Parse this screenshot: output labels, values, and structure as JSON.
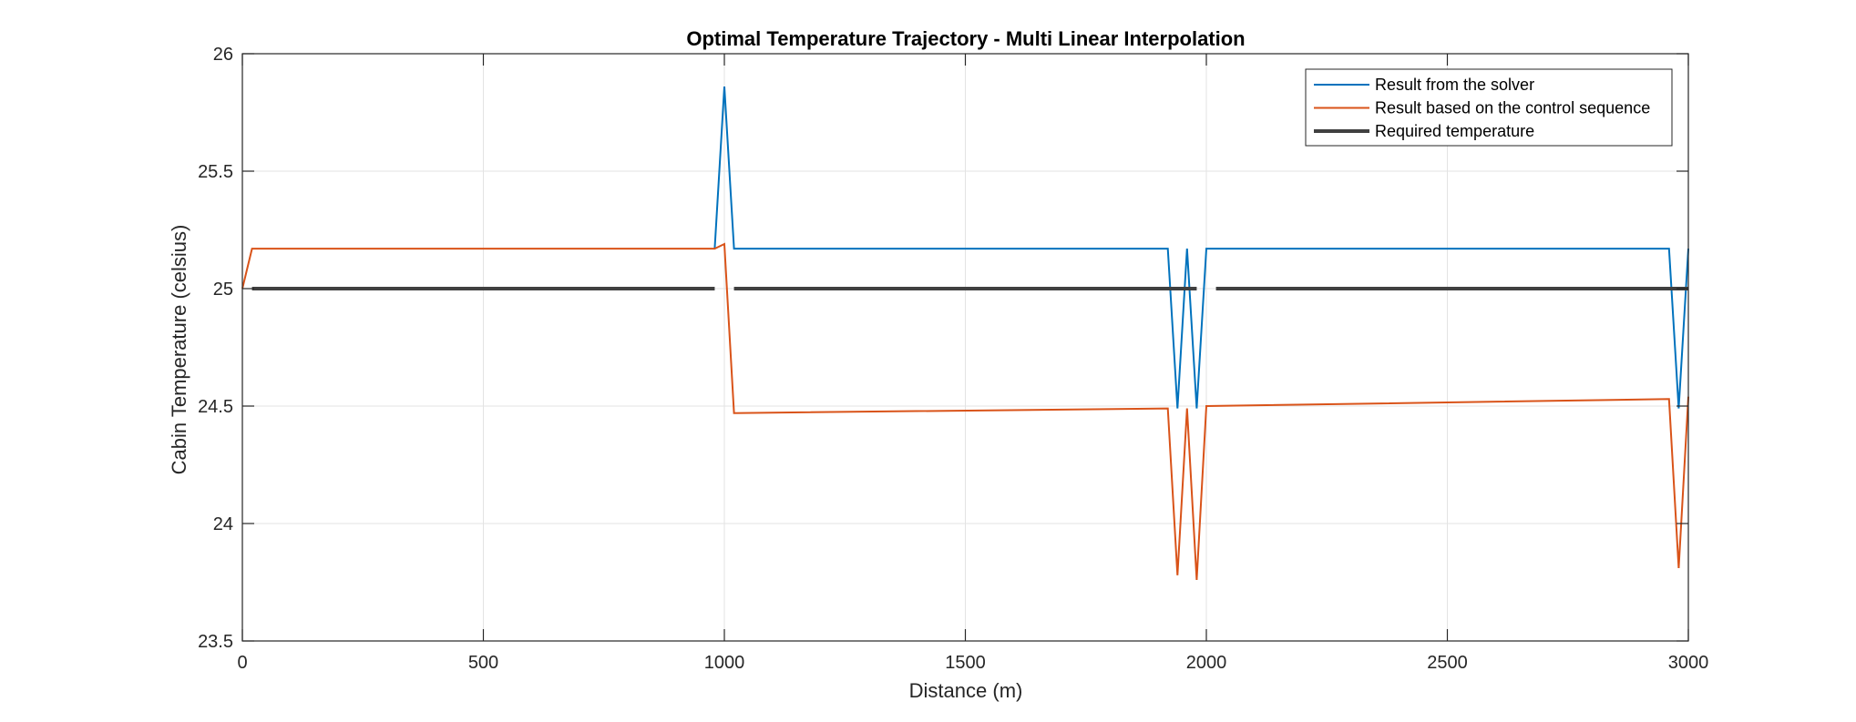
{
  "chart_data": {
    "type": "line",
    "title": "Optimal Temperature Trajectory - Multi Linear Interpolation",
    "xlabel": "Distance (m)",
    "ylabel": "Cabin Temperature (celsius)",
    "xlim": [
      0,
      3000
    ],
    "ylim": [
      23.5,
      26
    ],
    "xticks": [
      0,
      500,
      1000,
      1500,
      2000,
      2500,
      3000
    ],
    "yticks": [
      23.5,
      24,
      24.5,
      25,
      25.5,
      26
    ],
    "xtick_labels": [
      "0",
      "500",
      "1000",
      "1500",
      "2000",
      "2500",
      "3000"
    ],
    "ytick_labels": [
      "23.5",
      "24",
      "24.5",
      "25",
      "25.5",
      "26"
    ],
    "grid": true,
    "legend_position": "top-right",
    "series": [
      {
        "name": "Result from the solver",
        "color": "#0072BD",
        "line_width": 2,
        "x": [
          980,
          1000,
          1020,
          1920,
          1940,
          1960,
          1980,
          2000,
          2960,
          2980,
          3000
        ],
        "y": [
          25.17,
          25.86,
          25.17,
          25.17,
          24.49,
          25.17,
          24.49,
          25.17,
          25.17,
          24.49,
          25.17
        ]
      },
      {
        "name": "Result based on the control sequence",
        "color": "#D95319",
        "line_width": 2,
        "x": [
          0,
          20,
          980,
          1000,
          1020,
          1920,
          1940,
          1960,
          1980,
          2000,
          2960,
          2980,
          3000
        ],
        "y": [
          25.0,
          25.17,
          25.17,
          25.19,
          24.47,
          24.49,
          23.78,
          24.49,
          23.76,
          24.5,
          24.53,
          23.81,
          24.54
        ]
      },
      {
        "name": "Required temperature",
        "color": "#404040",
        "line_width": 4,
        "segments": [
          [
            20,
            980
          ],
          [
            1020,
            1980
          ],
          [
            2020,
            3000
          ]
        ],
        "value": 25
      }
    ]
  }
}
